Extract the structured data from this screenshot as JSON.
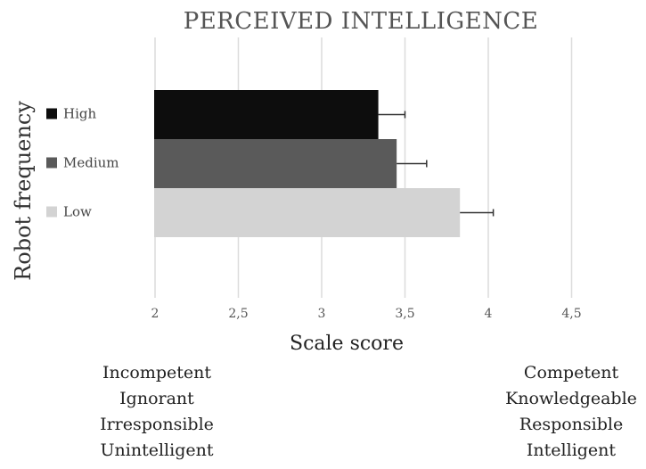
{
  "chart_data": {
    "type": "bar",
    "orientation": "horizontal",
    "title": "PERCEIVED INTELLIGENCE",
    "ylabel": "Robot frequency",
    "xlabel": "Scale score",
    "xlim": [
      2,
      5
    ],
    "x_ticks": [
      {
        "value": 2,
        "label": "2"
      },
      {
        "value": 2.5,
        "label": "2,5"
      },
      {
        "value": 3,
        "label": "3"
      },
      {
        "value": 3.5,
        "label": "3,5"
      },
      {
        "value": 4,
        "label": "4"
      },
      {
        "value": 4.5,
        "label": "4,5"
      }
    ],
    "grid": "vertical",
    "legend": "left",
    "series": [
      {
        "name": "High",
        "value": 3.34,
        "error": 0.16,
        "color": "#0d0d0d"
      },
      {
        "name": "Medium",
        "value": 3.45,
        "error": 0.18,
        "color": "#5a5a5a"
      },
      {
        "name": "Low",
        "value": 3.83,
        "error": 0.2,
        "color": "#d3d3d3"
      }
    ]
  },
  "anchors": {
    "left": [
      "Incompetent",
      "Ignorant",
      "Irresponsible",
      "Unintelligent"
    ],
    "right": [
      "Competent",
      "Knowledgeable",
      "Responsible",
      "Intelligent"
    ]
  }
}
